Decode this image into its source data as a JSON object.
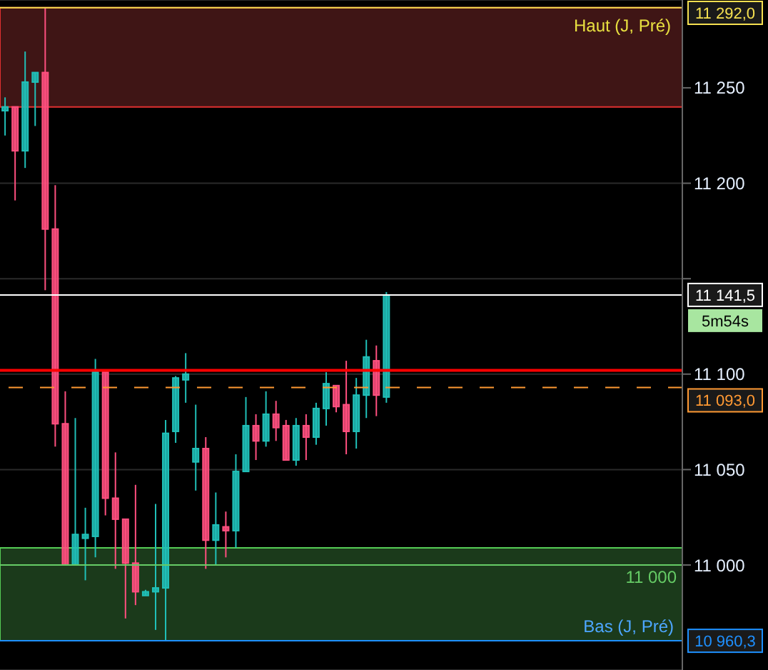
{
  "chart_data": {
    "type": "candlestick",
    "categories": [
      null,
      null,
      null,
      null,
      null,
      null,
      null,
      null,
      null,
      null,
      null,
      null,
      null,
      null,
      null,
      null,
      null,
      null,
      null,
      null,
      null,
      null,
      null,
      null,
      null,
      null,
      null,
      null,
      null,
      null,
      null,
      null,
      null,
      null,
      null,
      null,
      null,
      null,
      null,
      null,
      null,
      null,
      null,
      null,
      null,
      null,
      null,
      null,
      null,
      null,
      null,
      null,
      null,
      null,
      null,
      null,
      null,
      null,
      null,
      null,
      null,
      null,
      null,
      null,
      null,
      null,
      null,
      null
    ],
    "ohlc": [
      [
        11238,
        11245,
        11225,
        11240
      ],
      [
        11240,
        11240,
        11191,
        11217
      ],
      [
        11217,
        11269,
        11208,
        11253
      ],
      [
        11253,
        11258,
        11230,
        11258
      ],
      [
        11258,
        11292,
        11144,
        11176
      ],
      [
        11176,
        11199,
        11062,
        11074
      ],
      [
        11074,
        11091,
        11000,
        11000
      ],
      [
        11000,
        11077,
        11000,
        11016
      ],
      [
        11014,
        11030,
        10992,
        11016
      ],
      [
        11015,
        11108,
        11004,
        11101
      ],
      [
        11101,
        11101,
        11026,
        11035
      ],
      [
        11035,
        11059,
        10998,
        11024
      ],
      [
        11024,
        11024,
        10972,
        11001
      ],
      [
        11001,
        11042,
        10979,
        10986
      ],
      [
        10984,
        10987,
        10984,
        10986
      ],
      [
        10986,
        11032,
        10966,
        10988
      ],
      [
        10988,
        11076,
        10960.3,
        11069
      ],
      [
        11070,
        11099,
        11064,
        11098
      ],
      [
        11097,
        11111,
        11085,
        11100
      ],
      [
        11054,
        11084,
        11039,
        11061
      ],
      [
        11061,
        11067,
        10998,
        11013
      ],
      [
        11013,
        11038,
        11000,
        11021
      ],
      [
        11020,
        11028,
        11004,
        11018
      ],
      [
        11018,
        11058,
        11009,
        11049
      ],
      [
        11049,
        11088,
        11049,
        11073
      ],
      [
        11073,
        11079,
        11055,
        11065
      ],
      [
        11065,
        11091,
        11062,
        11079
      ],
      [
        11079,
        11086,
        11065,
        11072
      ],
      [
        11073,
        11076,
        11055,
        11055
      ],
      [
        11055,
        11077,
        11052,
        11073
      ],
      [
        11073,
        11079,
        11055,
        11067
      ],
      [
        11067,
        11085,
        11063,
        11082
      ],
      [
        11082,
        11101,
        11073,
        11095
      ],
      [
        11094,
        11094,
        11080,
        11083
      ],
      [
        11084,
        11107,
        11058,
        11070
      ],
      [
        11070,
        11098,
        11061,
        11089
      ],
      [
        11089,
        11118,
        11077,
        11109
      ],
      [
        11107,
        11115,
        11078,
        11089
      ],
      [
        11088,
        11143,
        11085,
        11141.5
      ],
      null,
      null,
      null,
      null,
      null,
      null,
      null,
      null,
      null,
      null,
      null,
      null,
      null,
      null,
      null,
      null,
      null,
      null,
      null,
      null,
      null,
      null,
      null,
      null,
      null,
      null,
      null,
      null,
      null
    ],
    "colors": [
      "#20c0b8",
      "#ff4f7f",
      "#20c0b8",
      "#20c0b8",
      "#ff4f7f",
      "#ff4f7f",
      "#ff4f7f",
      "#20c0b8",
      "#20c0b8",
      "#20c0b8",
      "#ff4f7f",
      "#ff4f7f",
      "#ff4f7f",
      "#ff4f7f",
      "#20c0b8",
      "#20c0b8",
      "#20c0b8",
      "#20c0b8",
      "#20c0b8",
      "#20c0b8",
      "#ff4f7f",
      "#20c0b8",
      "#ff4f7f",
      "#20c0b8",
      "#20c0b8",
      "#ff4f7f",
      "#20c0b8",
      "#ff4f7f",
      "#ff4f7f",
      "#20c0b8",
      "#ff4f7f",
      "#20c0b8",
      "#20c0b8",
      "#ff4f7f",
      "#ff4f7f",
      "#20c0b8",
      "#20c0b8",
      "#ff4f7f",
      "#20c0b8",
      null,
      null,
      null,
      null,
      null,
      null,
      null,
      null,
      null,
      null,
      null,
      null,
      null,
      null,
      null,
      null,
      null,
      null,
      null,
      null,
      null,
      null,
      null,
      null,
      null,
      null,
      null,
      null,
      null
    ],
    "ylim": [
      10945,
      11296
    ],
    "yticks": [
      {
        "value": 11000,
        "label": "11 000"
      },
      {
        "value": 11050,
        "label": "11 050"
      },
      {
        "value": 11100,
        "label": "11 100"
      },
      {
        "value": 11150,
        "label": null
      },
      {
        "value": 11200,
        "label": "11 200"
      },
      {
        "value": 11250,
        "label": "11 250"
      }
    ],
    "grid": "y",
    "tick_labels": "y",
    "bands": [
      {
        "axis": "y",
        "from": 11240,
        "to": 11292,
        "label": "Haut (J, Pré)",
        "color": "#3f1515"
      },
      {
        "axis": "y",
        "from": 10960.3,
        "to": 11009,
        "label": "Bas (J, Pré)",
        "color": "#1b3a1b"
      }
    ],
    "ref_lines": [
      {
        "axis": "y",
        "value": 11292,
        "label": "11 292,0",
        "color": "#f5e050"
      },
      {
        "axis": "y",
        "value": 11141.5,
        "label": "11 141,5",
        "color": "#ffffff"
      },
      {
        "axis": "y",
        "value": 11102,
        "label": null,
        "color": "#ff0000"
      },
      {
        "axis": "y",
        "value": 11093,
        "label": "11 093,0",
        "color": "#ff9933",
        "line_style": "dashed"
      },
      {
        "axis": "y",
        "value": 11000,
        "label": "11 000",
        "color": "#66cc66"
      },
      {
        "axis": "y",
        "value": 10960.3,
        "label": "10 960,3",
        "color": "#1e90ff"
      }
    ],
    "annotations": [
      "5m54s"
    ]
  }
}
